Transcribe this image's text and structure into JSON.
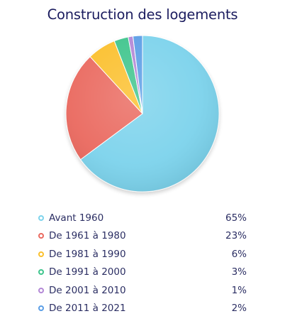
{
  "chart_data": {
    "type": "pie",
    "title": "Construction des logements",
    "categories": [
      "Avant 1960",
      "De 1961 à 1980",
      "De 1981 à 1990",
      "De 1991 à 2000",
      "De 2001 à 2010",
      "De 2011 à 2021"
    ],
    "values": [
      65,
      23,
      6,
      3,
      1,
      2
    ],
    "value_labels": [
      "65%",
      "23%",
      "6%",
      "3%",
      "1%",
      "2%"
    ],
    "colors": [
      "#7dd3ec",
      "#ea6a60",
      "#fbc02d",
      "#3fc58d",
      "#b388d6",
      "#5b9ee6"
    ],
    "legend_position": "bottom"
  }
}
